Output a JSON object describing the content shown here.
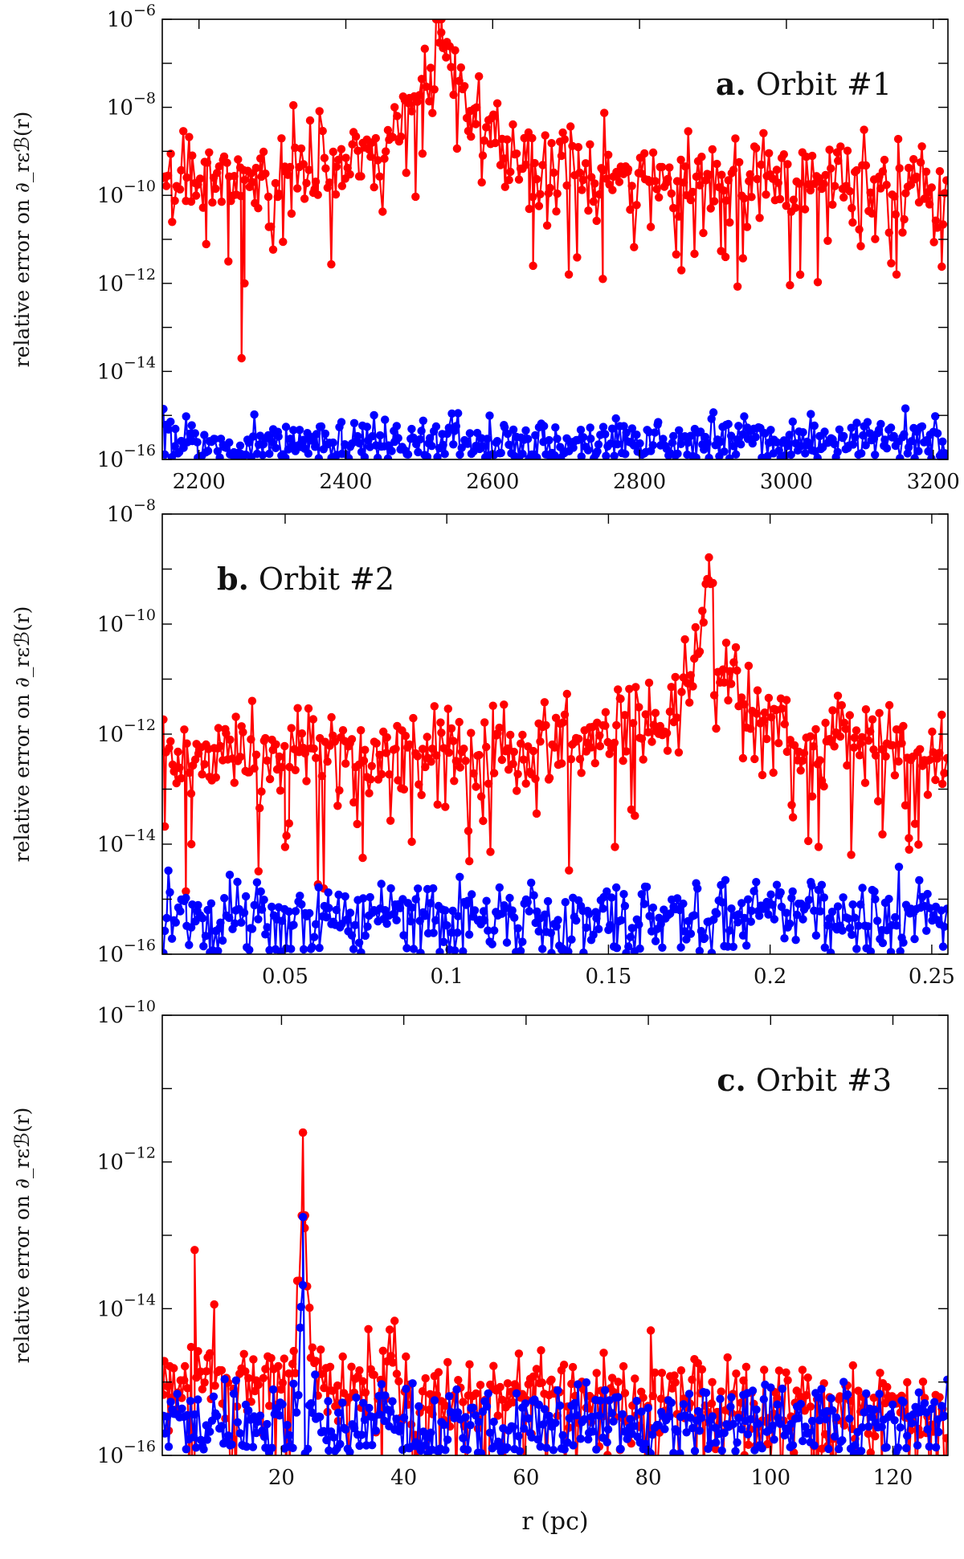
{
  "chart_data": [
    {
      "type": "scatter",
      "panel_label": "a.",
      "title": "Orbit #1",
      "ylabel": "relative error on ∂_rεℬ(r)",
      "xlabel": "",
      "yscale": "log",
      "ylim_exp": [
        -16,
        -6
      ],
      "y_tick_exponents": [
        -16,
        -14,
        -12,
        -10,
        -8,
        -6
      ],
      "xlim": [
        2150,
        3220
      ],
      "x_ticks": [
        2200,
        2400,
        2600,
        2800,
        3000,
        3200
      ],
      "x_tick_labels": [
        "2200",
        "2400",
        "2600",
        "2800",
        "3000",
        "3200"
      ],
      "title_position": "top-right",
      "series": [
        {
          "name": "red",
          "color": "#ff0000",
          "n_points": 420,
          "baseline_exp": -9.7,
          "scatter_exp": 0.45,
          "peak_x": 2530,
          "peak_exp": -6.3,
          "peak_width": 40,
          "dip_points": [
            [
              2258,
              -13.7
            ],
            [
              2262,
              -12.0
            ],
            [
              2240,
              -11.5
            ],
            [
              2750,
              -11.9
            ],
            [
              3150,
              -11.8
            ],
            [
              2655,
              -11.6
            ],
            [
              2857,
              -11.7
            ],
            [
              2917,
              -11.4
            ]
          ]
        },
        {
          "name": "blue",
          "color": "#0000ff",
          "n_points": 420,
          "baseline_exp": -15.55,
          "scatter_exp": 0.25,
          "floor_exp": -16
        }
      ]
    },
    {
      "type": "scatter",
      "panel_label": "b.",
      "title": "Orbit #2",
      "ylabel": "relative error on ∂_rεℬ(r)",
      "xlabel": "",
      "yscale": "log",
      "ylim_exp": [
        -16,
        -8
      ],
      "y_tick_exponents": [
        -16,
        -14,
        -12,
        -10,
        -8
      ],
      "xlim": [
        0.012,
        0.255
      ],
      "x_ticks": [
        0.05,
        0.1,
        0.15,
        0.2,
        0.25
      ],
      "x_tick_labels": [
        "0.05",
        "0.1",
        "0.15",
        "0.2",
        "0.25"
      ],
      "title_position": "top-left",
      "series": [
        {
          "name": "red",
          "color": "#ff0000",
          "n_points": 420,
          "baseline_exp": -12.4,
          "scatter_exp": 0.4,
          "peak_x": 0.181,
          "peak_exp": -9.2,
          "peak_width": 0.006,
          "dip_points": [
            [
              0.021,
              -14.0
            ],
            [
              0.05,
              -14.05
            ],
            [
              0.074,
              -14.25
            ],
            [
              0.152,
              -14.05
            ],
            [
              0.215,
              -14.05
            ],
            [
              0.243,
              -14.1
            ]
          ]
        },
        {
          "name": "blue",
          "color": "#0000ff",
          "n_points": 420,
          "baseline_exp": -15.3,
          "scatter_exp": 0.3,
          "floor_exp": -16
        }
      ]
    },
    {
      "type": "scatter",
      "panel_label": "c.",
      "title": "Orbit #3",
      "ylabel": "relative error on ∂_rεℬ(r)",
      "xlabel": "r (pc)",
      "yscale": "log",
      "ylim_exp": [
        -16,
        -10
      ],
      "y_tick_exponents": [
        -16,
        -14,
        -12,
        -10
      ],
      "xlim": [
        0.5,
        129
      ],
      "x_ticks": [
        20,
        40,
        60,
        80,
        100,
        120
      ],
      "x_tick_labels": [
        "20",
        "40",
        "60",
        "80",
        "100",
        "120"
      ],
      "title_position": "top-right",
      "series": [
        {
          "name": "red",
          "color": "#ff0000",
          "n_points": 420,
          "baseline_exp": -15.0,
          "scatter_exp": 0.3,
          "peak_x": 23.5,
          "peak_exp": -11.6,
          "peak_width": 0.8,
          "spikes": [
            [
              5.8,
              -13.2
            ],
            [
              23.5,
              -11.6
            ],
            [
              23.8,
              -12.9
            ]
          ],
          "decay_to_exp": -15.4
        },
        {
          "name": "blue",
          "color": "#0000ff",
          "n_points": 420,
          "baseline_exp": -15.55,
          "scatter_exp": 0.25,
          "peak_x": 23.5,
          "peak_exp": -12.75,
          "peak_width": 0.6,
          "floor_exp": -16
        }
      ]
    }
  ]
}
